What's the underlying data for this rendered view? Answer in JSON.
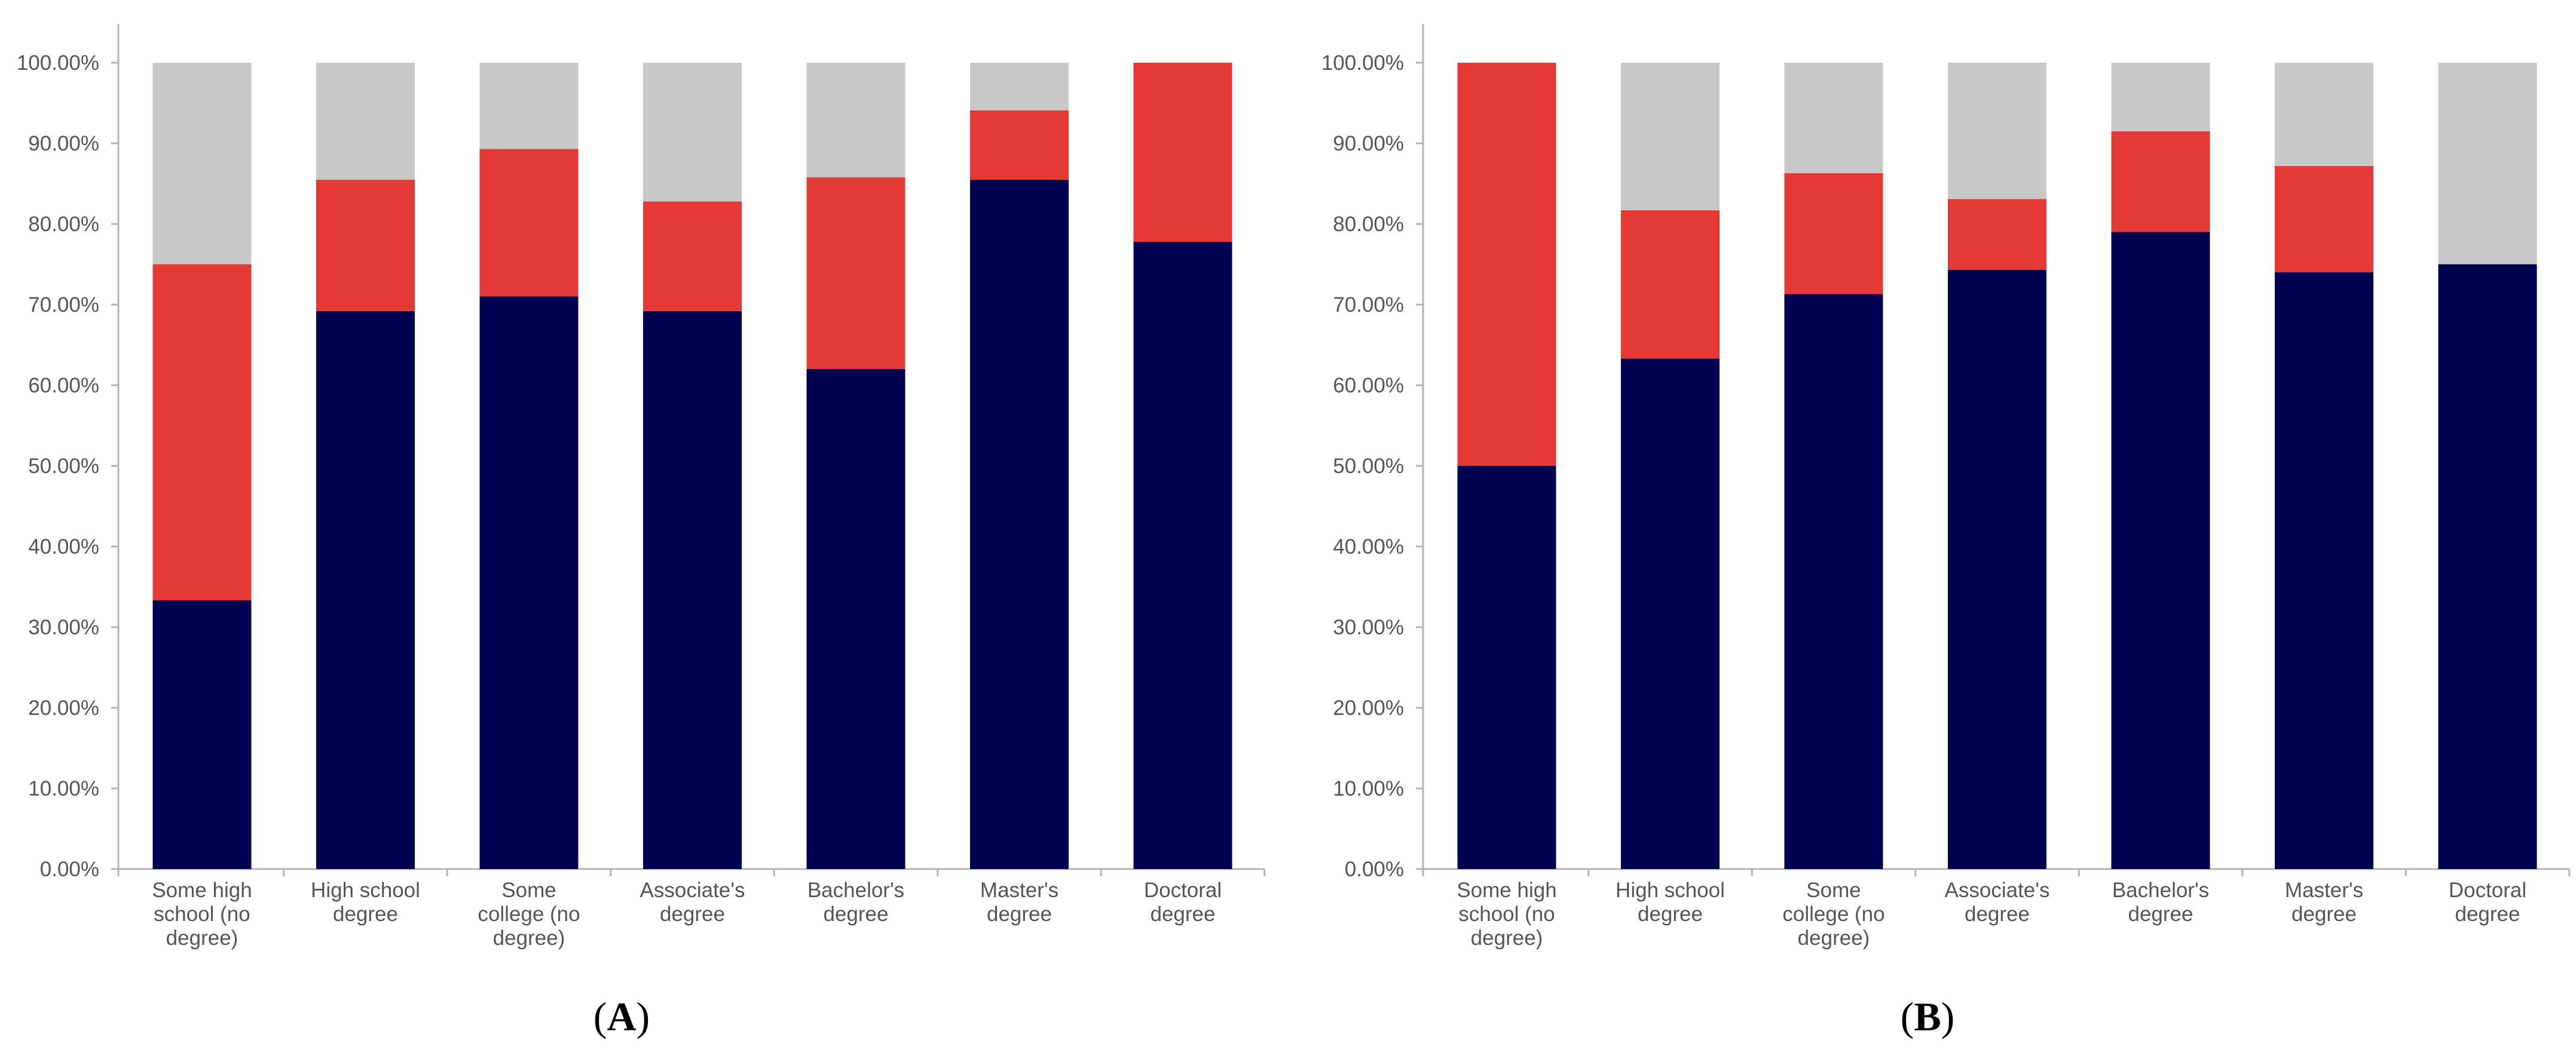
{
  "figure": {
    "panel_prefix": "(",
    "panel_suffix": ")"
  },
  "colors": {
    "bottom": "#000050",
    "middle": "#e53935",
    "top": "#c8c8c8",
    "axis": "#b4b4b4",
    "text": "#555555"
  },
  "chart_data": [
    {
      "type": "bar",
      "stacked": true,
      "panel_label": "A",
      "categories": [
        [
          "Some high",
          "school (no",
          "degree)"
        ],
        [
          "High school",
          "degree"
        ],
        [
          "Some",
          "college (no",
          "degree)"
        ],
        [
          "Associate's",
          "degree"
        ],
        [
          "Bachelor's",
          "degree"
        ],
        [
          "Master's",
          "degree"
        ],
        [
          "Doctoral",
          "degree"
        ]
      ],
      "series": [
        {
          "name": "bottom",
          "values": [
            33.33,
            69.2,
            71.0,
            69.2,
            62.0,
            85.5,
            77.8
          ]
        },
        {
          "name": "middle",
          "values": [
            41.67,
            16.3,
            18.3,
            13.6,
            23.8,
            8.6,
            22.2
          ]
        },
        {
          "name": "top",
          "values": [
            25.0,
            14.5,
            10.7,
            17.2,
            14.2,
            5.9,
            0.0
          ]
        }
      ],
      "yticks": [
        "0.00%",
        "10.00%",
        "20.00%",
        "30.00%",
        "40.00%",
        "50.00%",
        "60.00%",
        "70.00%",
        "80.00%",
        "90.00%",
        "100.00%"
      ],
      "ylim": [
        0,
        100
      ],
      "title": "",
      "xlabel": "",
      "ylabel": "",
      "legend": "none",
      "grid": false
    },
    {
      "type": "bar",
      "stacked": true,
      "panel_label": "B",
      "categories": [
        [
          "Some high",
          "school (no",
          "degree)"
        ],
        [
          "High school",
          "degree"
        ],
        [
          "Some",
          "college (no",
          "degree)"
        ],
        [
          "Associate's",
          "degree"
        ],
        [
          "Bachelor's",
          "degree"
        ],
        [
          "Master's",
          "degree"
        ],
        [
          "Doctoral",
          "degree"
        ]
      ],
      "series": [
        {
          "name": "bottom",
          "values": [
            50.0,
            63.3,
            71.3,
            74.3,
            79.0,
            74.0,
            75.0
          ]
        },
        {
          "name": "middle",
          "values": [
            50.0,
            18.4,
            15.0,
            8.8,
            12.5,
            13.2,
            0.0
          ]
        },
        {
          "name": "top",
          "values": [
            0.0,
            18.3,
            13.7,
            16.9,
            8.5,
            12.8,
            25.0
          ]
        }
      ],
      "yticks": [
        "0.00%",
        "10.00%",
        "20.00%",
        "30.00%",
        "40.00%",
        "50.00%",
        "60.00%",
        "70.00%",
        "80.00%",
        "90.00%",
        "100.00%"
      ],
      "ylim": [
        0,
        100
      ],
      "title": "",
      "xlabel": "",
      "ylabel": "",
      "legend": "none",
      "grid": false
    }
  ]
}
